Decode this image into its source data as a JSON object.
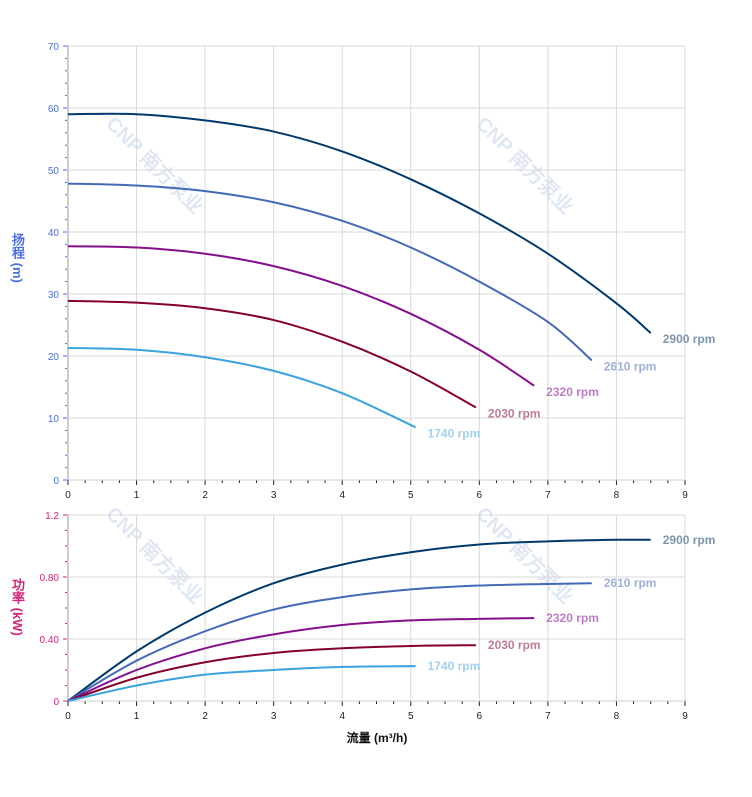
{
  "watermark": "CNP 南方泵业",
  "chart_data": [
    {
      "type": "line",
      "ylabel": "扬程 (m)",
      "ylabel_parts": [
        "扬",
        "程",
        "(m)"
      ],
      "xlim": [
        0,
        9
      ],
      "ylim": [
        0,
        70
      ],
      "xticks": [
        "0",
        "1",
        "2",
        "3",
        "4",
        "5",
        "6",
        "7",
        "8",
        "9"
      ],
      "yticks": [
        "0",
        "10",
        "20",
        "30",
        "40",
        "50",
        "60",
        "70"
      ],
      "grid": true,
      "axis_color": "#4a6fe0",
      "series": [
        {
          "name": "2900 rpm",
          "color": "#003a6b",
          "label_color": "#7f95ac",
          "x": [
            0,
            1,
            2,
            3,
            4,
            5,
            6,
            7,
            8,
            8.5
          ],
          "y": [
            59,
            59,
            58,
            56.2,
            53,
            48.5,
            43,
            36.5,
            28.5,
            23.7
          ]
        },
        {
          "name": "2610 rpm",
          "color": "#4469b5",
          "label_color": "#9fb0d6",
          "x": [
            0,
            1,
            2,
            3,
            4,
            5,
            6,
            7,
            7.64
          ],
          "y": [
            47.8,
            47.5,
            46.6,
            44.8,
            41.8,
            37.5,
            32,
            25.5,
            19.3
          ]
        },
        {
          "name": "2320 rpm",
          "color": "#84108c",
          "label_color": "#bd7dc4",
          "x": [
            0,
            1,
            2,
            3,
            4,
            5,
            6,
            6.8
          ],
          "y": [
            37.7,
            37.5,
            36.5,
            34.5,
            31.3,
            26.8,
            21,
            15.2
          ]
        },
        {
          "name": "2030 rpm",
          "color": "#84002e",
          "label_color": "#bd7d8e",
          "x": [
            0,
            1,
            2,
            3,
            4,
            5,
            5.95
          ],
          "y": [
            28.9,
            28.6,
            27.7,
            25.8,
            22.3,
            17.5,
            11.7
          ]
        },
        {
          "name": "1740 rpm",
          "color": "#3aa3dd",
          "label_color": "#9fd0ee",
          "x": [
            0,
            1,
            2,
            3,
            4,
            5.07
          ],
          "y": [
            21.3,
            21,
            19.8,
            17.6,
            14,
            8.5
          ]
        }
      ]
    },
    {
      "type": "line",
      "ylabel": "功率 (kW)",
      "ylabel_parts": [
        "功",
        "率",
        "(kW)"
      ],
      "xlabel": "流量 (m³/h)",
      "xlim": [
        0,
        9
      ],
      "ylim": [
        0,
        1.2
      ],
      "xticks": [
        "0",
        "1",
        "2",
        "3",
        "4",
        "5",
        "6",
        "7",
        "8",
        "9"
      ],
      "yticks": [
        "0",
        "0.40",
        "0.80",
        "1.2"
      ],
      "grid": true,
      "axis_color": "#d4237a",
      "series": [
        {
          "name": "2900 rpm",
          "color": "#003a6b",
          "label_color": "#7f95ac",
          "x": [
            0,
            1,
            2,
            3,
            4,
            5,
            6,
            7,
            8,
            8.5
          ],
          "y": [
            0,
            0.32,
            0.57,
            0.76,
            0.88,
            0.96,
            1.01,
            1.03,
            1.04,
            1.04
          ]
        },
        {
          "name": "2610 rpm",
          "color": "#4469b5",
          "label_color": "#9fb0d6",
          "x": [
            0,
            1,
            2,
            3,
            4,
            5,
            6,
            7,
            7.64
          ],
          "y": [
            0,
            0.26,
            0.45,
            0.59,
            0.67,
            0.72,
            0.745,
            0.755,
            0.76
          ]
        },
        {
          "name": "2320 rpm",
          "color": "#84108c",
          "label_color": "#bd7dc4",
          "x": [
            0,
            1,
            2,
            3,
            4,
            5,
            6,
            6.8
          ],
          "y": [
            0,
            0.2,
            0.34,
            0.43,
            0.49,
            0.52,
            0.53,
            0.535
          ]
        },
        {
          "name": "2030 rpm",
          "color": "#84002e",
          "label_color": "#bd7d8e",
          "x": [
            0,
            1,
            2,
            3,
            4,
            5,
            5.95
          ],
          "y": [
            0,
            0.15,
            0.25,
            0.31,
            0.34,
            0.355,
            0.36
          ]
        },
        {
          "name": "1740 rpm",
          "color": "#3aa3dd",
          "label_color": "#9fd0ee",
          "x": [
            0,
            1,
            2,
            3,
            4,
            5.07
          ],
          "y": [
            0,
            0.1,
            0.17,
            0.2,
            0.22,
            0.225
          ]
        }
      ]
    }
  ]
}
